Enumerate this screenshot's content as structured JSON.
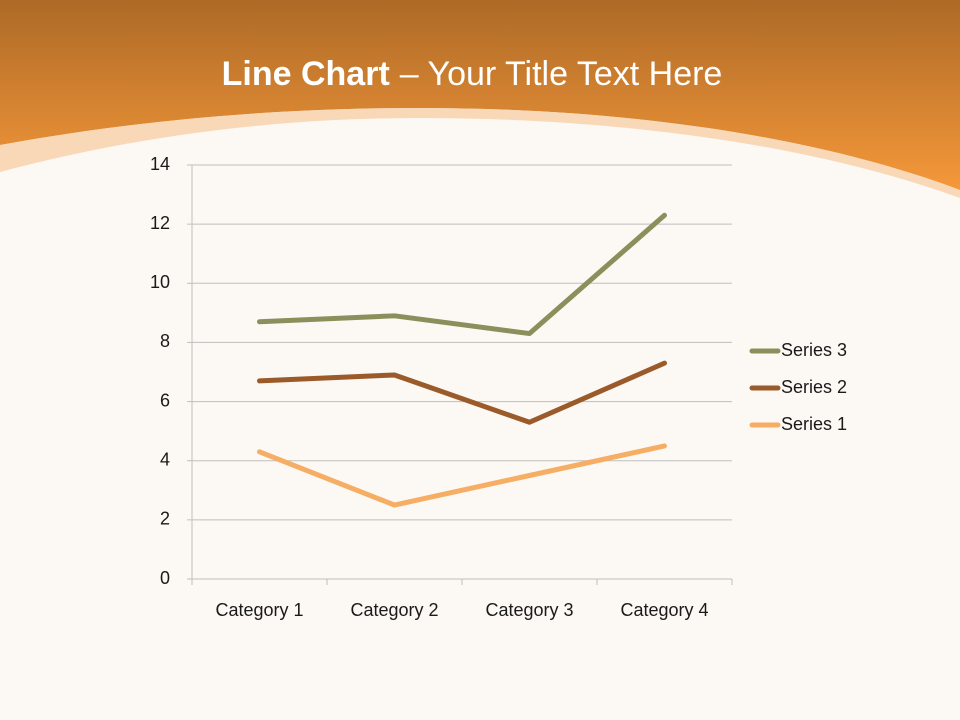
{
  "chart_data": {
    "type": "line",
    "stacked": true,
    "title": {
      "bold": "Line Chart",
      "rest": "– Your Title Text Here"
    },
    "categories": [
      "Category 1",
      "Category 2",
      "Category 3",
      "Category 4"
    ],
    "series": [
      {
        "name": "Series 1",
        "color": "#f6ad64",
        "values": [
          4.3,
          2.5,
          3.5,
          4.5
        ]
      },
      {
        "name": "Series 2",
        "color": "#9b5a2a",
        "values": [
          2.4,
          4.4,
          1.8,
          2.8
        ]
      },
      {
        "name": "Series 3",
        "color": "#8b8f5c",
        "values": [
          2,
          2,
          3,
          5
        ]
      }
    ],
    "ylim": [
      0,
      14
    ],
    "yticks": [
      0,
      2,
      4,
      6,
      8,
      10,
      12,
      14
    ],
    "grid": true,
    "legend": "right"
  }
}
